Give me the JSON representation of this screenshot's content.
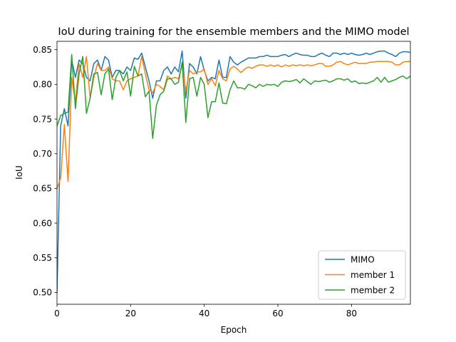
{
  "chart_data": {
    "type": "line",
    "title": "IoU during training for the ensemble members and the MIMO model",
    "xlabel": "Epoch",
    "ylabel": "IoU",
    "xlim": [
      0,
      96
    ],
    "ylim": [
      0.483,
      0.862
    ],
    "xticks": [
      0,
      20,
      40,
      60,
      80
    ],
    "yticks": [
      0.5,
      0.55,
      0.6,
      0.65,
      0.7,
      0.75,
      0.8,
      0.85
    ],
    "ytick_labels": [
      "0.50",
      "0.55",
      "0.60",
      "0.65",
      "0.70",
      "0.75",
      "0.80",
      "0.85"
    ],
    "grid": false,
    "legend_position": "lower right",
    "series": [
      {
        "name": "MIMO",
        "color": "#1f77b4",
        "values": [
          0.5,
          0.74,
          0.765,
          0.74,
          0.835,
          0.81,
          0.835,
          0.83,
          0.81,
          0.805,
          0.83,
          0.835,
          0.82,
          0.84,
          0.835,
          0.81,
          0.82,
          0.82,
          0.815,
          0.825,
          0.82,
          0.838,
          0.836,
          0.845,
          0.825,
          0.805,
          0.78,
          0.805,
          0.805,
          0.82,
          0.825,
          0.815,
          0.825,
          0.818,
          0.848,
          0.78,
          0.83,
          0.825,
          0.815,
          0.84,
          0.82,
          0.805,
          0.81,
          0.808,
          0.835,
          0.81,
          0.81,
          0.84,
          0.832,
          0.828,
          0.832,
          0.835,
          0.838,
          0.838,
          0.838,
          0.84,
          0.84,
          0.842,
          0.84,
          0.84,
          0.84,
          0.842,
          0.843,
          0.84,
          0.843,
          0.845,
          0.843,
          0.842,
          0.842,
          0.84,
          0.84,
          0.843,
          0.845,
          0.842,
          0.84,
          0.845,
          0.845,
          0.843,
          0.845,
          0.843,
          0.845,
          0.843,
          0.842,
          0.843,
          0.845,
          0.843,
          0.845,
          0.847,
          0.848,
          0.848,
          0.845,
          0.843,
          0.84,
          0.845,
          0.847,
          0.847,
          0.846
        ]
      },
      {
        "name": "member 1",
        "color": "#ff7f0e",
        "values": [
          0.65,
          0.665,
          0.742,
          0.66,
          0.81,
          0.775,
          0.83,
          0.81,
          0.84,
          0.78,
          0.81,
          0.83,
          0.82,
          0.82,
          0.825,
          0.808,
          0.805,
          0.805,
          0.792,
          0.805,
          0.808,
          0.81,
          0.812,
          0.84,
          0.815,
          0.792,
          0.788,
          0.8,
          0.797,
          0.792,
          0.812,
          0.808,
          0.81,
          0.808,
          0.828,
          0.79,
          0.82,
          0.815,
          0.818,
          0.818,
          0.822,
          0.8,
          0.808,
          0.798,
          0.82,
          0.808,
          0.805,
          0.822,
          0.826,
          0.822,
          0.817,
          0.822,
          0.825,
          0.823,
          0.826,
          0.828,
          0.828,
          0.826,
          0.828,
          0.826,
          0.828,
          0.825,
          0.828,
          0.826,
          0.828,
          0.827,
          0.828,
          0.827,
          0.828,
          0.827,
          0.828,
          0.83,
          0.83,
          0.826,
          0.826,
          0.828,
          0.832,
          0.833,
          0.83,
          0.828,
          0.83,
          0.832,
          0.83,
          0.83,
          0.83,
          0.832,
          0.832,
          0.833,
          0.833,
          0.833,
          0.833,
          0.832,
          0.828,
          0.828,
          0.832,
          0.833,
          0.833
        ]
      },
      {
        "name": "member 2",
        "color": "#2ca02c",
        "values": [
          0.74,
          0.755,
          0.758,
          0.76,
          0.843,
          0.765,
          0.815,
          0.84,
          0.758,
          0.78,
          0.815,
          0.817,
          0.785,
          0.815,
          0.822,
          0.778,
          0.81,
          0.82,
          0.805,
          0.818,
          0.783,
          0.826,
          0.812,
          0.815,
          0.782,
          0.79,
          0.722,
          0.77,
          0.785,
          0.79,
          0.808,
          0.808,
          0.8,
          0.803,
          0.832,
          0.745,
          0.808,
          0.81,
          0.783,
          0.81,
          0.8,
          0.752,
          0.775,
          0.775,
          0.802,
          0.773,
          0.772,
          0.792,
          0.805,
          0.795,
          0.795,
          0.793,
          0.8,
          0.798,
          0.795,
          0.8,
          0.797,
          0.8,
          0.799,
          0.8,
          0.797,
          0.803,
          0.805,
          0.804,
          0.805,
          0.807,
          0.802,
          0.808,
          0.804,
          0.8,
          0.805,
          0.804,
          0.805,
          0.806,
          0.803,
          0.805,
          0.808,
          0.808,
          0.806,
          0.808,
          0.803,
          0.805,
          0.801,
          0.802,
          0.801,
          0.803,
          0.805,
          0.81,
          0.803,
          0.81,
          0.803,
          0.805,
          0.807,
          0.81,
          0.812,
          0.808,
          0.812
        ]
      }
    ]
  }
}
